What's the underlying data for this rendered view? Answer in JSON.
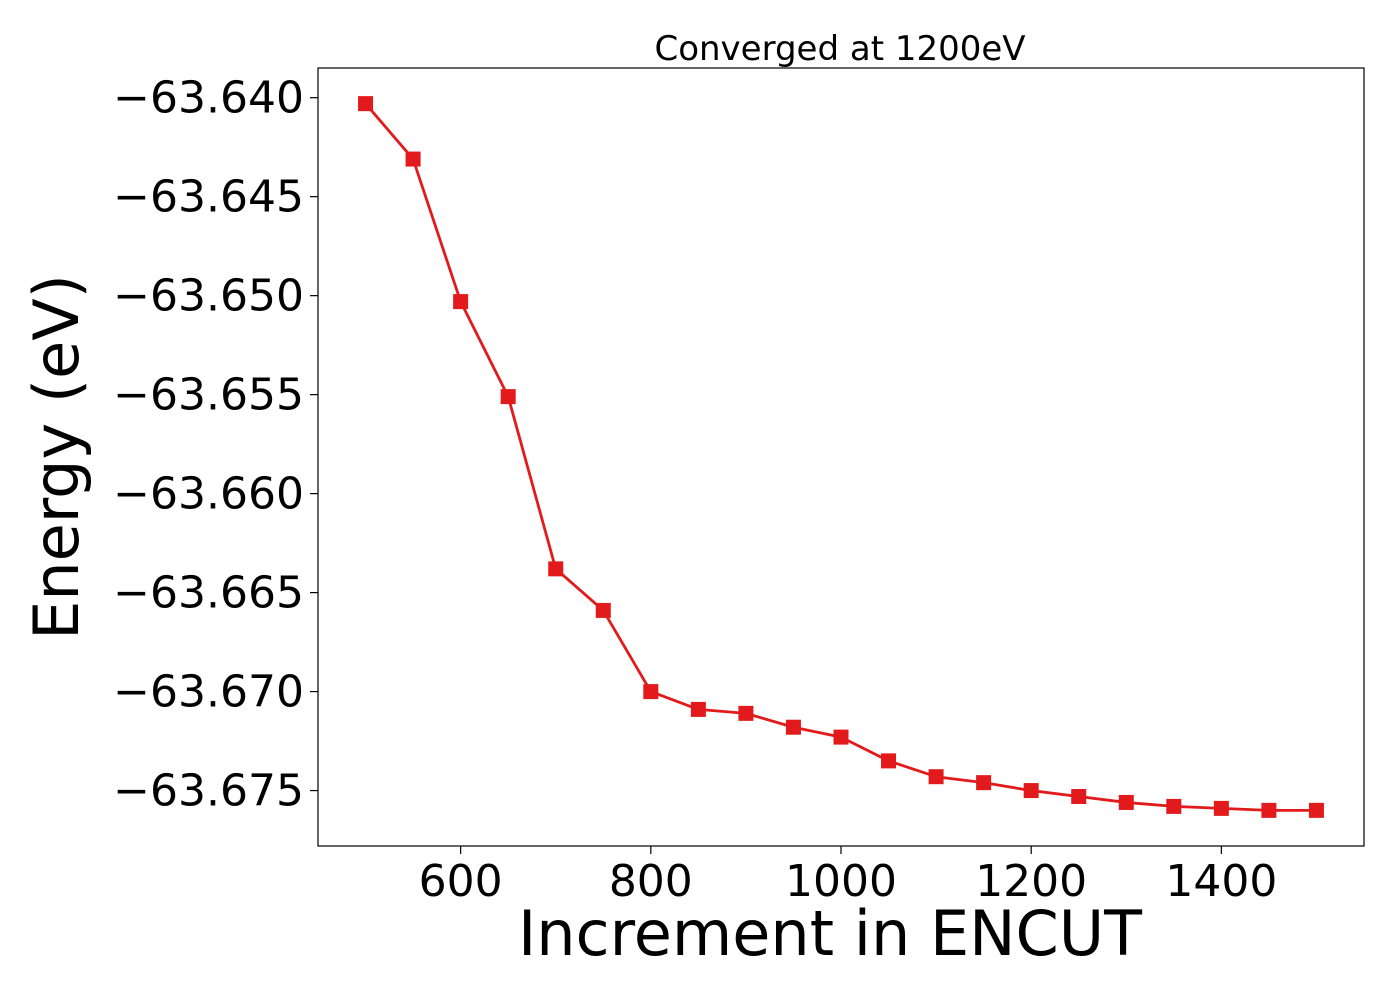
{
  "chart_data": {
    "type": "line",
    "title": "Converged at 1200eV",
    "xlabel": "Increment in ENCUT",
    "ylabel": "Energy (eV)",
    "xlim": [
      450,
      1550
    ],
    "ylim": [
      -63.6778,
      -63.6385
    ],
    "x_ticks": [
      600,
      800,
      1000,
      1200,
      1400
    ],
    "x_tick_labels": [
      "600",
      "800",
      "1000",
      "1200",
      "1400"
    ],
    "y_ticks": [
      -63.64,
      -63.645,
      -63.65,
      -63.655,
      -63.66,
      -63.665,
      -63.67,
      -63.675
    ],
    "y_tick_labels": [
      "−63.640",
      "−63.645",
      "−63.650",
      "−63.655",
      "−63.660",
      "−63.665",
      "−63.670",
      "−63.675"
    ],
    "grid": false,
    "legend": false,
    "color": "#e31a1c",
    "marker": "square",
    "x": [
      500,
      550,
      600,
      650,
      700,
      750,
      800,
      850,
      900,
      950,
      1000,
      1050,
      1100,
      1150,
      1200,
      1250,
      1300,
      1350,
      1400,
      1450,
      1500
    ],
    "y": [
      -63.6403,
      -63.6431,
      -63.6503,
      -63.6551,
      -63.6638,
      -63.6659,
      -63.67,
      -63.6709,
      -63.6711,
      -63.6718,
      -63.6723,
      -63.6735,
      -63.6743,
      -63.6746,
      -63.675,
      -63.6753,
      -63.6756,
      -63.6758,
      -63.6759,
      -63.676,
      -63.676
    ]
  }
}
